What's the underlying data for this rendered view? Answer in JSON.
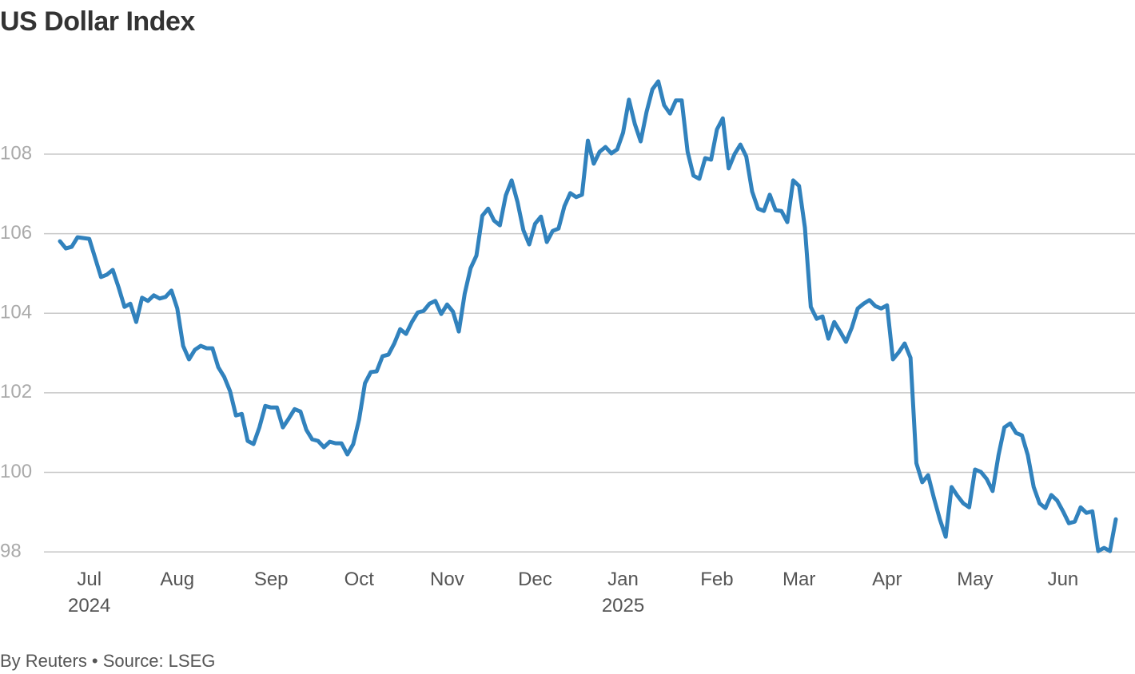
{
  "chart_data": {
    "type": "line",
    "title": "US Dollar Index",
    "footer": "By Reuters • Source: LSEG",
    "color": "#3182bd",
    "grid": true,
    "ylim": [
      97.6,
      110
    ],
    "yticks": [
      98,
      100,
      102,
      104,
      106,
      108
    ],
    "categories": [
      null,
      null,
      null,
      null,
      null,
      "Jul 2024",
      null,
      null,
      null,
      null,
      null,
      null,
      null,
      null,
      null,
      null,
      null,
      null,
      null,
      null,
      "Aug",
      null,
      null,
      null,
      null,
      null,
      null,
      null,
      null,
      null,
      null,
      null,
      null,
      null,
      null,
      null,
      "Sep",
      null,
      null,
      null,
      null,
      null,
      null,
      null,
      null,
      null,
      null,
      null,
      null,
      null,
      null,
      "Oct",
      null,
      null,
      null,
      null,
      null,
      null,
      null,
      null,
      null,
      null,
      null,
      null,
      null,
      null,
      "Nov",
      null,
      null,
      null,
      null,
      null,
      null,
      null,
      null,
      null,
      null,
      null,
      null,
      null,
      null,
      "Dec",
      null,
      null,
      null,
      null,
      null,
      null,
      null,
      null,
      null,
      null,
      null,
      null,
      null,
      null,
      "Jan 2025",
      null,
      null,
      null,
      null,
      null,
      null,
      null,
      null,
      null,
      null,
      null,
      null,
      null,
      null,
      null,
      "Feb",
      null,
      null,
      null,
      null,
      null,
      null,
      null,
      null,
      null,
      null,
      null,
      null,
      null,
      "Mar",
      null,
      null,
      null,
      null,
      null,
      null,
      null,
      null,
      null,
      null,
      null,
      null,
      null,
      null,
      "Apr",
      null,
      null,
      null,
      null,
      null,
      null,
      null,
      null,
      null,
      null,
      null,
      null,
      null,
      null,
      "May",
      null,
      null,
      null,
      null,
      null,
      null,
      null,
      null,
      null,
      null,
      null,
      null,
      null,
      null,
      "Jun",
      null,
      null,
      null,
      null,
      null,
      null,
      null,
      null,
      null
    ],
    "values": [
      105.81,
      105.63,
      105.67,
      105.91,
      105.89,
      105.87,
      105.39,
      104.91,
      104.97,
      105.09,
      104.65,
      104.16,
      104.24,
      103.78,
      104.39,
      104.31,
      104.45,
      104.37,
      104.41,
      104.57,
      104.12,
      103.18,
      102.84,
      103.08,
      103.18,
      103.12,
      103.12,
      102.64,
      102.4,
      102.04,
      101.43,
      101.47,
      100.79,
      100.71,
      101.13,
      101.67,
      101.63,
      101.63,
      101.13,
      101.35,
      101.59,
      101.53,
      101.07,
      100.83,
      100.79,
      100.63,
      100.77,
      100.73,
      100.73,
      100.45,
      100.71,
      101.33,
      102.24,
      102.52,
      102.54,
      102.92,
      102.96,
      103.24,
      103.6,
      103.48,
      103.78,
      104.02,
      104.06,
      104.24,
      104.31,
      103.98,
      104.22,
      104.04,
      103.54,
      104.49,
      105.13,
      105.45,
      106.45,
      106.63,
      106.33,
      106.21,
      106.96,
      107.34,
      106.8,
      106.09,
      105.73,
      106.25,
      106.43,
      105.79,
      106.07,
      106.13,
      106.69,
      107.02,
      106.92,
      106.98,
      108.34,
      107.76,
      108.06,
      108.18,
      108.02,
      108.12,
      108.54,
      109.37,
      108.76,
      108.32,
      109.06,
      109.63,
      109.83,
      109.23,
      109.02,
      109.35,
      109.35,
      108.06,
      107.46,
      107.38,
      107.9,
      107.86,
      108.62,
      108.9,
      107.64,
      108.0,
      108.24,
      107.94,
      107.06,
      106.63,
      106.57,
      106.98,
      106.59,
      106.57,
      106.29,
      107.34,
      107.2,
      106.15,
      104.16,
      103.86,
      103.92,
      103.36,
      103.78,
      103.54,
      103.28,
      103.64,
      104.12,
      104.24,
      104.33,
      104.18,
      104.12,
      104.2,
      102.84,
      103.02,
      103.24,
      102.88,
      100.23,
      99.75,
      99.93,
      99.35,
      98.82,
      98.38,
      99.63,
      99.41,
      99.22,
      99.12,
      100.07,
      100.01,
      99.83,
      99.53,
      100.43,
      101.13,
      101.23,
      100.99,
      100.93,
      100.43,
      99.63,
      99.22,
      99.1,
      99.43,
      99.29,
      99.02,
      98.72,
      98.76,
      99.12,
      98.98,
      99.02,
      98.02,
      98.1,
      98.02,
      98.82
    ]
  }
}
